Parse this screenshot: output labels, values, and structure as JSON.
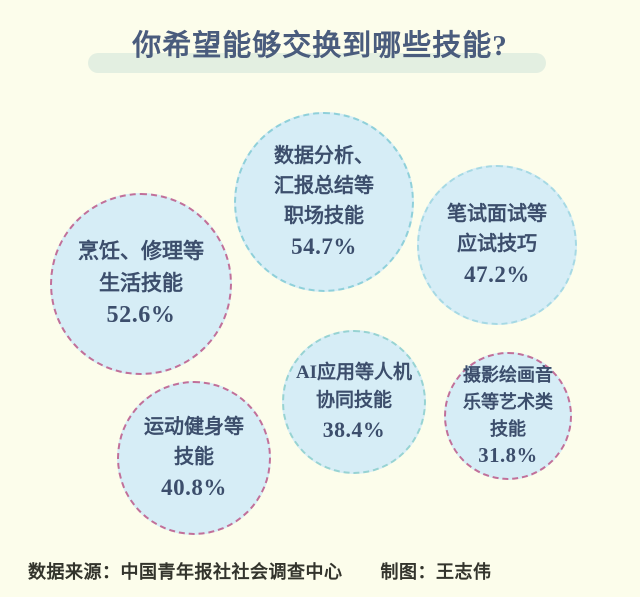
{
  "page": {
    "title": "你希望能够交换到哪些技能?"
  },
  "bubbles": [
    {
      "id": "workplace",
      "label": "数据分析、\n汇报总结等\n职场技能",
      "value": "54.7%",
      "fill_color": "#d6edf6",
      "border_color": "#8fd0da"
    },
    {
      "id": "exam",
      "label": "笔试面试等\n应试技巧",
      "value": "47.2%",
      "fill_color": "#d6edf6",
      "border_color": "#a6d9e4"
    },
    {
      "id": "life",
      "label": "烹饪、修理等\n生活技能",
      "value": "52.6%",
      "fill_color": "#d6edf6",
      "border_color": "#c1709a"
    },
    {
      "id": "ai",
      "label": "AI应用等人机\n协同技能",
      "value": "38.4%",
      "fill_color": "#d6edf6",
      "border_color": "#97d3d3"
    },
    {
      "id": "art",
      "label": "摄影绘画音\n乐等艺术类\n技能",
      "value": "31.8%",
      "fill_color": "#d6edf6",
      "border_color": "#c1709a"
    },
    {
      "id": "sport",
      "label": "运动健身等\n技能",
      "value": "40.8%",
      "fill_color": "#d6edf6",
      "border_color": "#c1709a"
    }
  ],
  "footer": {
    "source_label": "数据来源：中国青年报社社会调查中心",
    "credit_label": "制图：王志伟"
  },
  "colors": {
    "background": "#fcfdeb",
    "title_text": "#4a5c7d",
    "title_highlight": "#e3efe1",
    "bubble_fill": "#d6edf6",
    "bubble_text": "#3c4e6c",
    "border_cyan": "#8fd0da",
    "border_pink": "#c1709a",
    "footer_text": "#33342c"
  },
  "chart_data": {
    "type": "bubble",
    "title": "你希望能够交换到哪些技能?",
    "unit": "%",
    "items": [
      {
        "label": "数据分析、汇报总结等职场技能",
        "value": 54.7
      },
      {
        "label": "烹饪、修理等生活技能",
        "value": 52.6
      },
      {
        "label": "笔试面试等应试技巧",
        "value": 47.2
      },
      {
        "label": "运动健身等技能",
        "value": 40.8
      },
      {
        "label": "AI应用等人机协同技能",
        "value": 38.4
      },
      {
        "label": "摄影绘画音乐等艺术类技能",
        "value": 31.8
      }
    ],
    "source": "中国青年报社社会调查中心",
    "credit": "王志伟",
    "legend_position": "none",
    "grid": false
  }
}
